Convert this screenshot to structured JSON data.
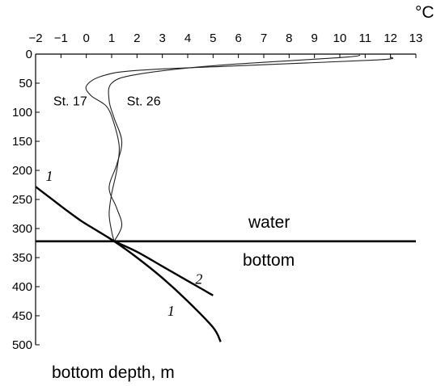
{
  "chart_data": {
    "type": "line",
    "xlabel_unit": "°C",
    "ylabel": "bottom depth, m",
    "x_ticks": [
      "−2",
      "−1",
      "0",
      "1",
      "2",
      "3",
      "4",
      "5",
      "6",
      "7",
      "8",
      "9",
      "10",
      "11",
      "12",
      "13"
    ],
    "y_ticks": [
      "0",
      "50",
      "100",
      "150",
      "200",
      "250",
      "300",
      "350",
      "400",
      "450",
      "500"
    ],
    "xlim": [
      -2,
      13
    ],
    "ylim": [
      0,
      500
    ],
    "y_inverted": true,
    "boundary": {
      "depth": 322,
      "upper_label": "water",
      "lower_label": "bottom"
    },
    "series": [
      {
        "name": "St. 17",
        "x": [
          12.0,
          11.5,
          6.0,
          2.0,
          0.6,
          0.0,
          0.2,
          0.8,
          1.1,
          1.3,
          1.2,
          1.0,
          0.9,
          1.0,
          1.1
        ],
        "y": [
          5,
          10,
          20,
          28,
          38,
          55,
          72,
          90,
          120,
          160,
          200,
          240,
          275,
          305,
          322
        ]
      },
      {
        "name": "St. 26",
        "x": [
          10.8,
          10.0,
          5.0,
          2.0,
          1.0,
          0.9,
          1.1,
          1.4,
          1.2,
          0.9,
          1.2,
          1.4,
          1.1
        ],
        "y": [
          2,
          6,
          20,
          35,
          50,
          80,
          110,
          150,
          190,
          230,
          265,
          295,
          322
        ]
      },
      {
        "name": "1",
        "x": [
          -2.0,
          -1.4,
          -0.8,
          -0.2,
          0.4,
          1.1,
          2.0,
          3.0,
          4.0,
          5.0,
          5.3
        ],
        "y": [
          228,
          248,
          268,
          287,
          303,
          322,
          350,
          385,
          425,
          470,
          495
        ]
      },
      {
        "name": "2",
        "x": [
          1.1,
          2.0,
          3.0,
          4.0,
          5.0
        ],
        "y": [
          322,
          340,
          365,
          390,
          415
        ]
      }
    ],
    "curve_labels": [
      {
        "text": "1",
        "x": -1.6,
        "y": 218
      },
      {
        "text": "2",
        "x": 4.3,
        "y": 395
      },
      {
        "text": "1",
        "x": 3.2,
        "y": 450
      }
    ],
    "station_labels": [
      {
        "text": "St. 17",
        "x": -1.3,
        "y": 88
      },
      {
        "text": "St. 26",
        "x": 1.6,
        "y": 88
      }
    ]
  }
}
